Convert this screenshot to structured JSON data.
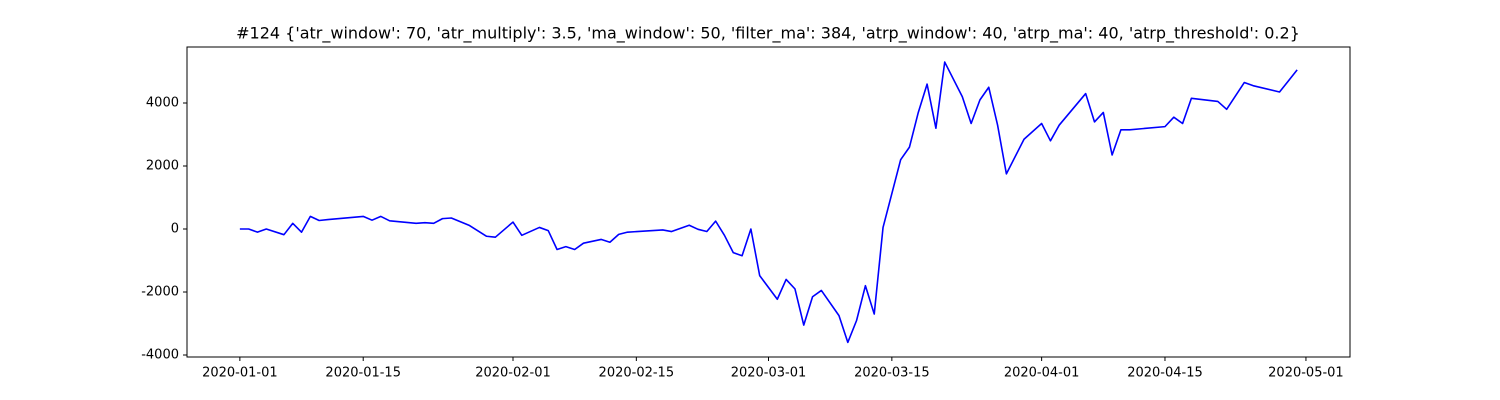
{
  "chart_data": {
    "type": "line",
    "title": "#124 {'atr_window': 70, 'atr_multiply': 3.5, 'ma_window': 50, 'filter_ma': 384, 'atrp_window': 40, 'atrp_ma': 40, 'atrp_threshold': 0.2}",
    "x": [
      "2020-01-01",
      "2020-01-02",
      "2020-01-03",
      "2020-01-04",
      "2020-01-06",
      "2020-01-07",
      "2020-01-08",
      "2020-01-09",
      "2020-01-10",
      "2020-01-11",
      "2020-01-15",
      "2020-01-16",
      "2020-01-17",
      "2020-01-18",
      "2020-01-21",
      "2020-01-22",
      "2020-01-23",
      "2020-01-24",
      "2020-01-25",
      "2020-01-27",
      "2020-01-29",
      "2020-01-30",
      "2020-02-01",
      "2020-02-02",
      "2020-02-04",
      "2020-02-05",
      "2020-02-06",
      "2020-02-07",
      "2020-02-08",
      "2020-02-09",
      "2020-02-11",
      "2020-02-12",
      "2020-02-13",
      "2020-02-14",
      "2020-02-18",
      "2020-02-19",
      "2020-02-21",
      "2020-02-22",
      "2020-02-23",
      "2020-02-24",
      "2020-02-25",
      "2020-02-26",
      "2020-02-27",
      "2020-02-28",
      "2020-02-29",
      "2020-03-02",
      "2020-03-03",
      "2020-03-04",
      "2020-03-05",
      "2020-03-06",
      "2020-03-07",
      "2020-03-09",
      "2020-03-10",
      "2020-03-11",
      "2020-03-12",
      "2020-03-13",
      "2020-03-14",
      "2020-03-16",
      "2020-03-17",
      "2020-03-18",
      "2020-03-19",
      "2020-03-20",
      "2020-03-21",
      "2020-03-23",
      "2020-03-24",
      "2020-03-25",
      "2020-03-26",
      "2020-03-27",
      "2020-03-28",
      "2020-03-30",
      "2020-04-01",
      "2020-04-02",
      "2020-04-03",
      "2020-04-06",
      "2020-04-07",
      "2020-04-08",
      "2020-04-09",
      "2020-04-10",
      "2020-04-11",
      "2020-04-15",
      "2020-04-16",
      "2020-04-17",
      "2020-04-18",
      "2020-04-21",
      "2020-04-22",
      "2020-04-24",
      "2020-04-25",
      "2020-04-28",
      "2020-04-29",
      "2020-04-30"
    ],
    "series": [
      {
        "color": "#0000ff",
        "values": [
          0,
          0,
          -100,
          0,
          -180,
          180,
          -100,
          400,
          270,
          300,
          400,
          280,
          400,
          260,
          180,
          200,
          180,
          330,
          350,
          120,
          -230,
          -260,
          220,
          -200,
          50,
          -50,
          -650,
          -560,
          -650,
          -450,
          -330,
          -420,
          -170,
          -100,
          -30,
          -80,
          120,
          -10,
          -80,
          250,
          -200,
          -750,
          -850,
          0,
          -1480,
          -2230,
          -1600,
          -1900,
          -3050,
          -2150,
          -1950,
          -2750,
          -3600,
          -2900,
          -1800,
          -2700,
          50,
          2200,
          2600,
          3700,
          4600,
          3200,
          5300,
          4200,
          3350,
          4100,
          4500,
          3300,
          1750,
          2850,
          3350,
          2800,
          3300,
          4300,
          3400,
          3700,
          2350,
          3150,
          3150,
          3250,
          3550,
          3350,
          4150,
          4050,
          3800,
          4650,
          4550,
          4350,
          4700,
          5050
        ]
      }
    ],
    "xlim": [
      "2019-12-26",
      "2020-05-06"
    ],
    "xticks": [
      "2020-01-01",
      "2020-01-15",
      "2020-02-01",
      "2020-02-15",
      "2020-03-01",
      "2020-03-15",
      "2020-04-01",
      "2020-04-15",
      "2020-05-01"
    ],
    "ylim": [
      -4063,
      5778
    ],
    "yticks": [
      -4000,
      -2000,
      0,
      2000,
      4000
    ]
  }
}
